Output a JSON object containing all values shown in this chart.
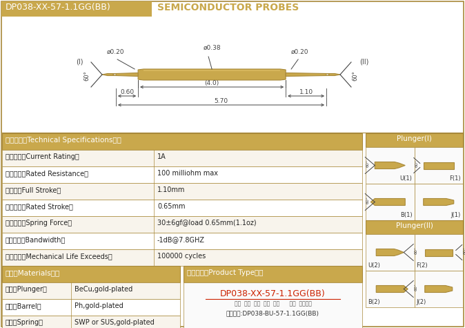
{
  "title_box_text": "DP038-XX-57-1.1GG(BB)",
  "title_main": "SEMICONDUCTOR PROBES",
  "title_box_color": "#C9A84C",
  "bg_color": "#FFFFFF",
  "gold_color": "#C9A84C",
  "gold_dark": "#A8893A",
  "gold_light": "#DFC06A",
  "line_color": "#444444",
  "specs_header": "技术要求（Technical Specifications）：",
  "specs": [
    [
      "额定电流（Current Rating）",
      "1A"
    ],
    [
      "额定电阻（Rated Resistance）",
      "100 milliohm max"
    ],
    [
      "满行程（Full Stroke）",
      "1.10mm"
    ],
    [
      "额定行程（Rated Stroke）",
      "0.65mm"
    ],
    [
      "额定弹力（Spring Force）",
      "30±6gf@load 0.65mm(1.1oz)"
    ],
    [
      "频率带宽（Bandwidth）",
      "-1dB@7.8GHZ"
    ],
    [
      "测试寿命（Mechanical Life Exceeds）",
      "100000 cycles"
    ]
  ],
  "materials_header": "材质（Materials）：",
  "materials": [
    [
      "针头（Plunger）",
      "BeCu,gold-plated"
    ],
    [
      "针管（Barrel）",
      "Ph,gold-plated"
    ],
    [
      "弹簧（Spring）",
      "SWP or SUS,gold-plated"
    ]
  ],
  "product_header": "成品型号（Product Type）：",
  "product_model": "DP038-XX-57-1.1GG(BB)",
  "product_labels": "系列  规格  头型  总长  弹力      镀金  针头材质",
  "product_example": "订购举例:DP038-BU-57-1.1GG(BB)",
  "plunger1_header": "Plunger(I)",
  "plunger2_header": "Plunger(II)",
  "probe_dims": {
    "d_left": "ø0.20",
    "d_mid": "ø0.38",
    "d_right": "ø0.20",
    "len_mid": "(4.0)",
    "len_left": "0.60",
    "len_right": "1.10",
    "len_total": "5.70"
  }
}
